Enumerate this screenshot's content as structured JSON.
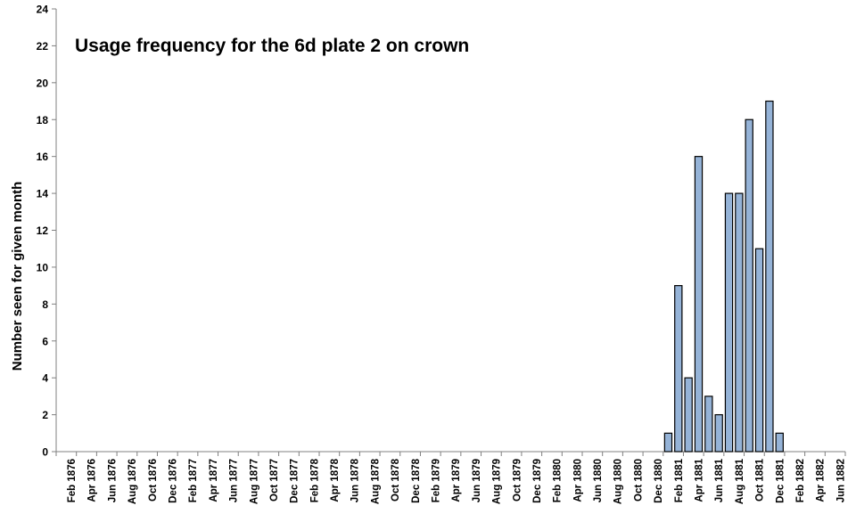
{
  "chart_data": {
    "type": "bar",
    "title": "Usage frequency for the 6d plate 2 on crown",
    "xlabel": "",
    "ylabel": "Number seen for given month",
    "ylim": [
      0,
      24
    ],
    "yticks": [
      "0",
      "2",
      "4",
      "6",
      "8",
      "10",
      "12",
      "14",
      "16",
      "18",
      "20",
      "22",
      "24"
    ],
    "grid": false,
    "legend": "none",
    "x_tick_labels": [
      "Feb 1876",
      "Apr 1876",
      "Jun 1876",
      "Aug 1876",
      "Oct 1876",
      "Dec 1876",
      "Feb 1877",
      "Apr 1877",
      "Jun 1877",
      "Aug 1877",
      "Oct 1877",
      "Dec 1877",
      "Feb 1878",
      "Apr 1878",
      "Jun 1878",
      "Aug 1878",
      "Oct 1878",
      "Dec 1878",
      "Feb 1879",
      "Apr 1879",
      "Jun 1879",
      "Aug 1879",
      "Oct 1879",
      "Dec 1879",
      "Feb 1880",
      "Apr 1880",
      "Jun 1880",
      "Aug 1880",
      "Oct 1880",
      "Dec 1880",
      "Feb 1881",
      "Apr 1881",
      "Jun 1881",
      "Aug 1881",
      "Oct 1881",
      "Dec 1881",
      "Feb 1882",
      "Apr 1882",
      "Jun 1882"
    ],
    "x_range": [
      "Jan 1876",
      "Jun 1882"
    ],
    "bars": [
      {
        "month": "Jan 1881",
        "value": 1
      },
      {
        "month": "Feb 1881",
        "value": 9
      },
      {
        "month": "Mar 1881",
        "value": 4
      },
      {
        "month": "Apr 1881",
        "value": 16
      },
      {
        "month": "May 1881",
        "value": 3
      },
      {
        "month": "Jun 1881",
        "value": 2
      },
      {
        "month": "Jul 1881",
        "value": 14
      },
      {
        "month": "Aug 1881",
        "value": 14
      },
      {
        "month": "Sep 1881",
        "value": 18
      },
      {
        "month": "Oct 1881",
        "value": 11
      },
      {
        "month": "Nov 1881",
        "value": 19
      },
      {
        "month": "Dec 1881",
        "value": 1
      }
    ],
    "colors": {
      "bar_fill": "#95b3d7",
      "bar_stroke": "#000000",
      "axis": "#808080"
    }
  }
}
